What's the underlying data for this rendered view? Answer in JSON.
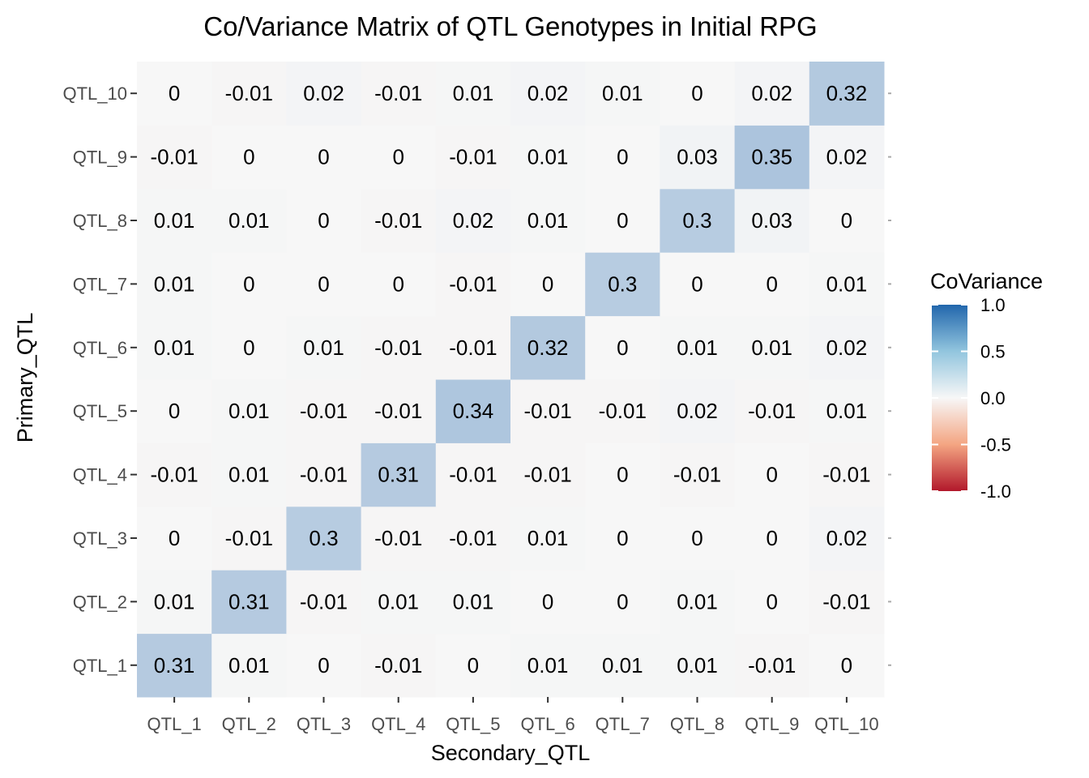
{
  "chart_data": {
    "type": "heatmap",
    "title": "Co/Variance Matrix of QTL Genotypes in Initial RPG",
    "xlabel": "Secondary_QTL",
    "ylabel": "Primary_QTL",
    "x_categories": [
      "QTL_1",
      "QTL_2",
      "QTL_3",
      "QTL_4",
      "QTL_5",
      "QTL_6",
      "QTL_7",
      "QTL_8",
      "QTL_9",
      "QTL_10"
    ],
    "y_categories": [
      "QTL_1",
      "QTL_2",
      "QTL_3",
      "QTL_4",
      "QTL_5",
      "QTL_6",
      "QTL_7",
      "QTL_8",
      "QTL_9",
      "QTL_10"
    ],
    "values": [
      [
        0.31,
        0.01,
        0,
        -0.01,
        0,
        0.01,
        0.01,
        0.01,
        -0.01,
        0
      ],
      [
        0.01,
        0.31,
        -0.01,
        0.01,
        0.01,
        0,
        0,
        0.01,
        0,
        -0.01
      ],
      [
        0,
        -0.01,
        0.3,
        -0.01,
        -0.01,
        0.01,
        0,
        0,
        0,
        0.02
      ],
      [
        -0.01,
        0.01,
        -0.01,
        0.31,
        -0.01,
        -0.01,
        0,
        -0.01,
        0,
        -0.01
      ],
      [
        0,
        0.01,
        -0.01,
        -0.01,
        0.34,
        -0.01,
        -0.01,
        0.02,
        -0.01,
        0.01
      ],
      [
        0.01,
        0,
        0.01,
        -0.01,
        -0.01,
        0.32,
        0,
        0.01,
        0.01,
        0.02
      ],
      [
        0.01,
        0,
        0,
        0,
        -0.01,
        0,
        0.3,
        0,
        0,
        0.01
      ],
      [
        0.01,
        0.01,
        0,
        -0.01,
        0.02,
        0.01,
        0,
        0.3,
        0.03,
        0
      ],
      [
        -0.01,
        0,
        0,
        0,
        -0.01,
        0.01,
        0,
        0.03,
        0.35,
        0.02
      ],
      [
        0,
        -0.01,
        0.02,
        -0.01,
        0.01,
        0.02,
        0.01,
        0,
        0.02,
        0.32
      ]
    ],
    "legend": {
      "title": "CoVariance",
      "position": "right",
      "limits": [
        -1,
        1
      ],
      "ticks": [
        "1.0",
        "0.5",
        "0.0",
        "-0.5",
        "-1.0"
      ],
      "tick_values": [
        1,
        0.5,
        0,
        -0.5,
        -1
      ],
      "colors": {
        "low": "#B2182B",
        "mid": "#F7F7F7",
        "high": "#2166AC"
      }
    },
    "panel_background": "#EBEBEB"
  }
}
